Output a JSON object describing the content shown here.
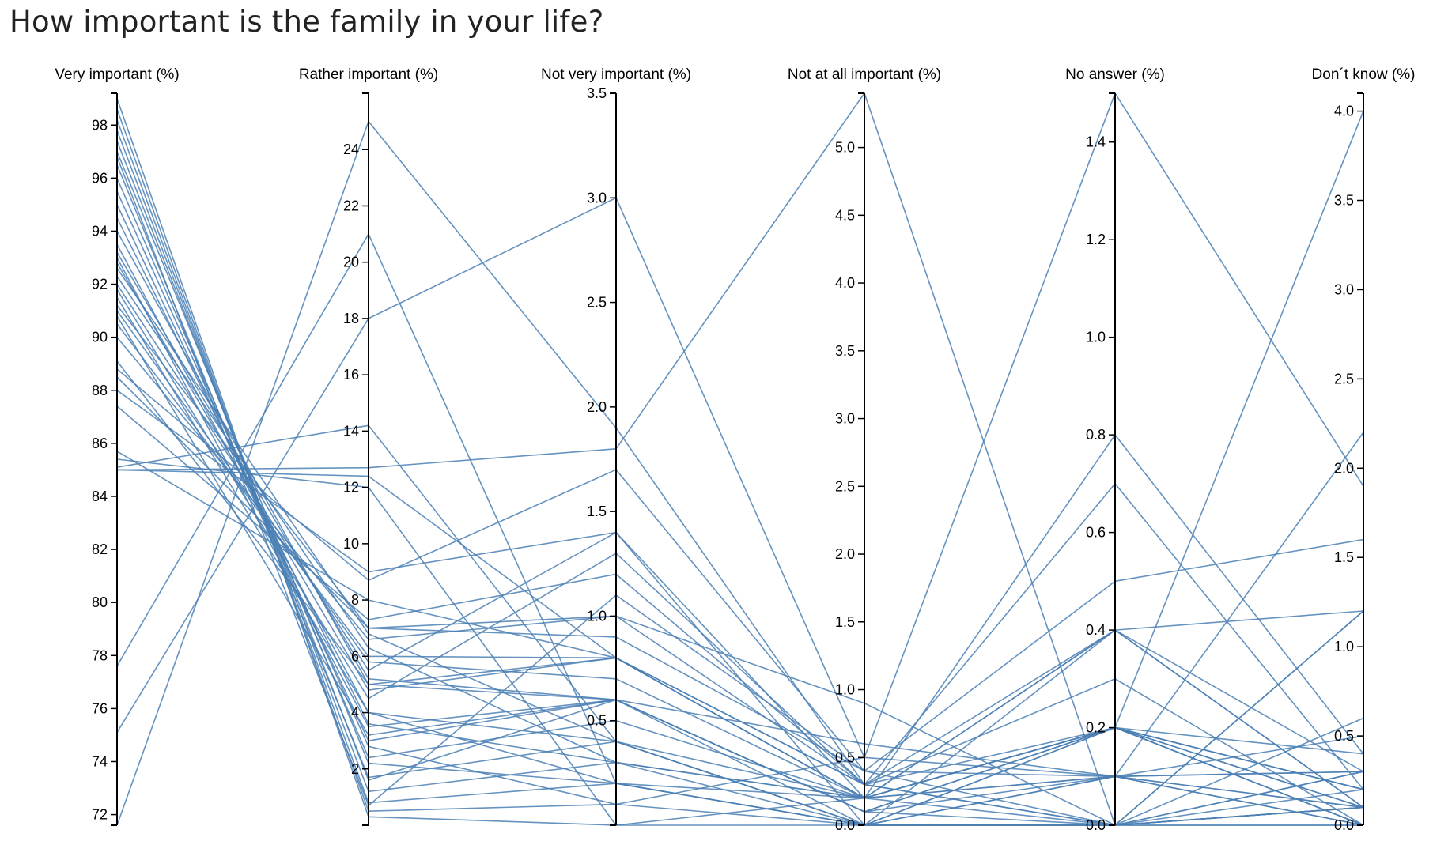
{
  "chart_data": {
    "type": "parallel_coordinates",
    "title": "How important is the family in your life?",
    "line_color": "#4a7fb4",
    "axes": [
      {
        "key": "very",
        "label": "Very important (%)",
        "domain": [
          71.6,
          99.2
        ],
        "ticks": [
          72,
          74,
          76,
          78,
          80,
          82,
          84,
          86,
          88,
          90,
          92,
          94,
          96,
          98
        ],
        "tick_labels": [
          "72",
          "74",
          "76",
          "78",
          "80",
          "82",
          "84",
          "86",
          "88",
          "90",
          "92",
          "94",
          "96",
          "98"
        ],
        "tick_side": "left"
      },
      {
        "key": "rather",
        "label": "Rather important (%)",
        "domain": [
          0.0,
          26.0
        ],
        "ticks": [
          2,
          4,
          6,
          8,
          10,
          12,
          14,
          16,
          18,
          20,
          22,
          24
        ],
        "tick_labels": [
          "2",
          "4",
          "6",
          "8",
          "10",
          "12",
          "14",
          "16",
          "18",
          "20",
          "22",
          "24"
        ],
        "tick_side": "left"
      },
      {
        "key": "notvery",
        "label": "Not very important (%)",
        "domain": [
          0.0,
          3.5
        ],
        "ticks": [
          0.5,
          1.0,
          1.5,
          2.0,
          2.5,
          3.0,
          3.5
        ],
        "tick_labels": [
          "0.5",
          "1.0",
          "1.5",
          "2.0",
          "2.5",
          "3.0",
          "3.5"
        ],
        "tick_side": "left"
      },
      {
        "key": "notatall",
        "label": "Not at all important (%)",
        "domain": [
          0.0,
          5.4
        ],
        "ticks": [
          0.0,
          0.5,
          1.0,
          1.5,
          2.0,
          2.5,
          3.0,
          3.5,
          4.0,
          4.5,
          5.0
        ],
        "tick_labels": [
          "0.0",
          "0.5",
          "1.0",
          "1.5",
          "2.0",
          "2.5",
          "3.0",
          "3.5",
          "4.0",
          "4.5",
          "5.0"
        ],
        "tick_side": "left"
      },
      {
        "key": "noanswer",
        "label": "No answer (%)",
        "domain": [
          0.0,
          1.5
        ],
        "ticks": [
          0.0,
          0.2,
          0.4,
          0.6,
          0.8,
          1.0,
          1.2,
          1.4
        ],
        "tick_labels": [
          "0.0",
          "0.2",
          "0.4",
          "0.6",
          "0.8",
          "1.0",
          "1.2",
          "1.4"
        ],
        "tick_side": "left"
      },
      {
        "key": "dontknow",
        "label": "Don´t know (%)",
        "domain": [
          0.0,
          4.1
        ],
        "ticks": [
          0.0,
          0.5,
          1.0,
          1.5,
          2.0,
          2.5,
          3.0,
          3.5,
          4.0
        ],
        "tick_labels": [
          "0.0",
          "0.5",
          "1.0",
          "1.5",
          "2.0",
          "2.5",
          "3.0",
          "3.5",
          "4.0"
        ],
        "tick_side": "left"
      }
    ],
    "records": [
      [
        71.6,
        25.0,
        1.9,
        0.3,
        0.0,
        1.2
      ],
      [
        75.1,
        18.0,
        3.0,
        0.5,
        1.5,
        1.9
      ],
      [
        77.6,
        21.0,
        0.2,
        0.0,
        0.0,
        1.2
      ],
      [
        85.1,
        14.2,
        0.4,
        0.0,
        0.0,
        0.3
      ],
      [
        85.4,
        12.0,
        0.0,
        0.2,
        0.1,
        2.2
      ],
      [
        85.0,
        12.4,
        0.8,
        0.2,
        0.4,
        1.2
      ],
      [
        85.0,
        12.7,
        1.8,
        5.4,
        0.0,
        0.0
      ],
      [
        85.7,
        8.0,
        0.8,
        0.2,
        0.2,
        4.0
      ],
      [
        87.4,
        7.3,
        1.2,
        0.3,
        0.4,
        0.1
      ],
      [
        88.8,
        8.7,
        1.7,
        0.4,
        0.5,
        1.6
      ],
      [
        89.1,
        5.0,
        0.6,
        0.6,
        0.1,
        0.0
      ],
      [
        88.5,
        7.0,
        1.0,
        0.3,
        0.2,
        0.4
      ],
      [
        88.0,
        9.0,
        1.4,
        0.2,
        0.2,
        0.0
      ],
      [
        90.0,
        6.6,
        1.0,
        0.9,
        0.0,
        0.6
      ],
      [
        90.5,
        6.0,
        0.8,
        0.3,
        0.7,
        0.2
      ],
      [
        91.0,
        5.8,
        0.7,
        0.2,
        0.2,
        0.2
      ],
      [
        91.2,
        7.0,
        0.9,
        0.4,
        0.1,
        0.0
      ],
      [
        91.5,
        4.0,
        0.4,
        0.2,
        0.2,
        0.2
      ],
      [
        92.0,
        5.5,
        1.4,
        0.0,
        0.0,
        0.1
      ],
      [
        92.3,
        6.3,
        0.3,
        0.2,
        0.4,
        0.3
      ],
      [
        92.8,
        4.8,
        0.8,
        0.2,
        0.2,
        0.1
      ],
      [
        93.2,
        5.2,
        0.6,
        0.0,
        0.1,
        0.3
      ],
      [
        93.0,
        3.5,
        0.6,
        0.1,
        0.0,
        0.1
      ],
      [
        93.5,
        4.0,
        0.2,
        0.2,
        0.8,
        0.4
      ],
      [
        94.5,
        3.6,
        0.3,
        0.0,
        0.0,
        0.1
      ],
      [
        95.0,
        3.0,
        0.6,
        0.1,
        0.2,
        0.0
      ],
      [
        95.5,
        2.8,
        0.1,
        0.5,
        0.1,
        0.3
      ],
      [
        96.0,
        2.4,
        0.5,
        0.2,
        0.0,
        0.1
      ],
      [
        96.5,
        1.7,
        0.4,
        0.0,
        0.1,
        0.1
      ],
      [
        97.0,
        2.2,
        0.2,
        0.0,
        0.2,
        0.2
      ],
      [
        97.4,
        1.6,
        0.6,
        0.1,
        0.2,
        0.0
      ],
      [
        97.8,
        1.2,
        0.3,
        0.2,
        0.1,
        0.1
      ],
      [
        98.2,
        0.8,
        0.2,
        0.0,
        0.0,
        0.0
      ],
      [
        98.6,
        0.5,
        0.1,
        0.0,
        0.4,
        0.1
      ],
      [
        99.0,
        0.3,
        0.0,
        0.0,
        0.0,
        0.2
      ],
      [
        91.8,
        4.5,
        1.3,
        0.3,
        0.3,
        0.0
      ],
      [
        90.8,
        3.2,
        0.6,
        0.1,
        0.1,
        0.5
      ],
      [
        94.0,
        5.0,
        0.8,
        0.3,
        0.0,
        0.1
      ],
      [
        96.8,
        0.7,
        1.1,
        0.4,
        0.0,
        0.3
      ],
      [
        92.6,
        6.8,
        0.4,
        0.0,
        0.2,
        0.1
      ]
    ]
  }
}
